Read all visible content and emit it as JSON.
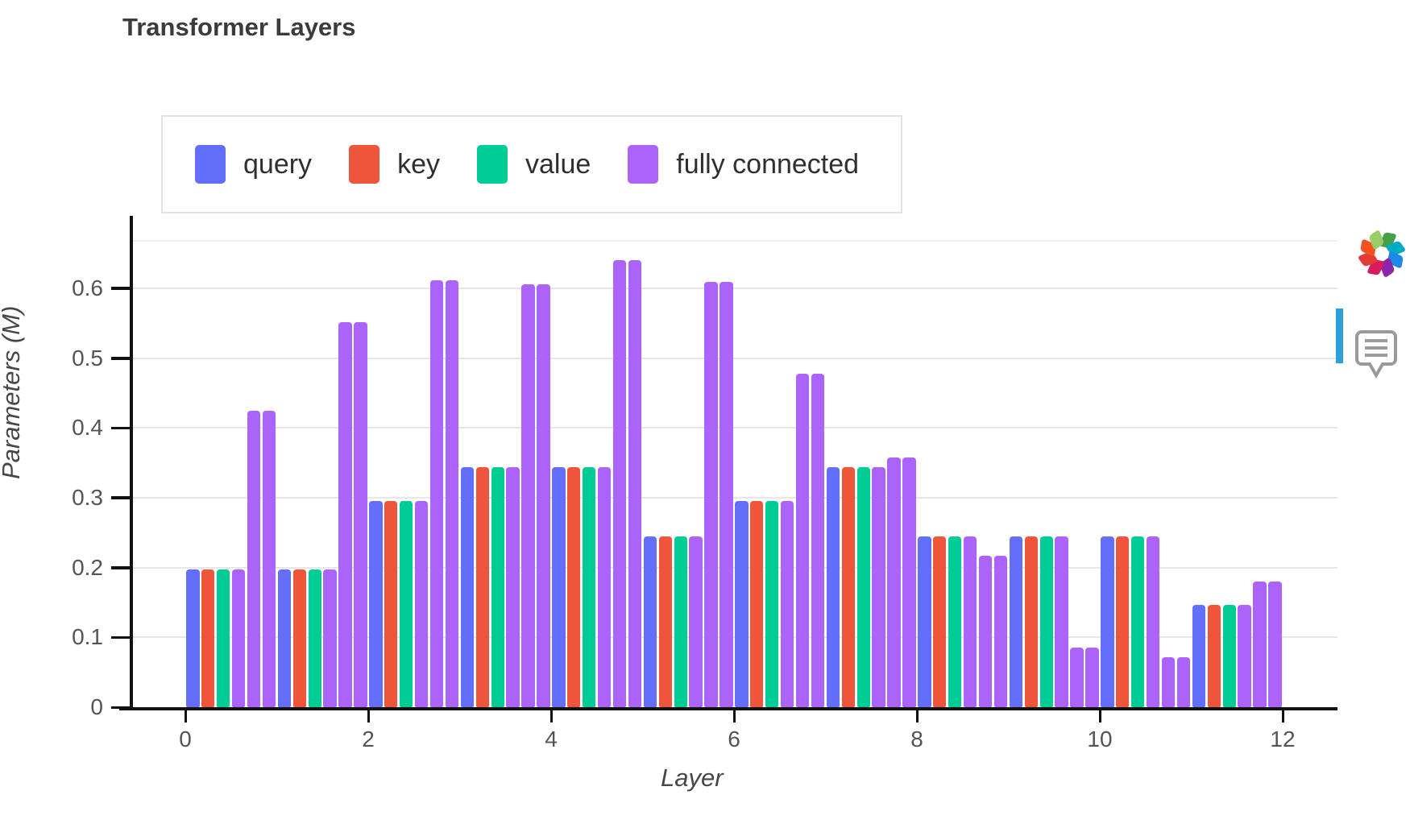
{
  "title": "Transformer Layers",
  "legend": {
    "items": [
      {
        "label": "query",
        "color": "#636EFA"
      },
      {
        "label": "key",
        "color": "#EF553B"
      },
      {
        "label": "value",
        "color": "#00CC96"
      },
      {
        "label": "fully connected",
        "color": "#AB63FA"
      }
    ]
  },
  "axes": {
    "y": {
      "title": "Parameters (M)",
      "tick_labels": [
        "0",
        "0.1",
        "0.2",
        "0.3",
        "0.4",
        "0.5",
        "0.6"
      ]
    },
    "x": {
      "title": "Layer",
      "tick_labels": [
        "0",
        "2",
        "4",
        "6",
        "8",
        "10",
        "12"
      ]
    }
  },
  "sidebar_icons": {
    "pinwheel_colors": [
      "#43A047",
      "#00ACC1",
      "#1E88E5",
      "#8E24AA",
      "#D81B60",
      "#E53935",
      "#F4511E",
      "#9CCC65"
    ],
    "indicator_color": "#29a0d8",
    "bubble_color": "#9a9a9a"
  },
  "chart_data": {
    "type": "bar",
    "title": "Transformer Layers",
    "xlabel": "Layer",
    "ylabel": "Parameters (M)",
    "xlim": [
      0,
      12
    ],
    "ylim": [
      0,
      0.669
    ],
    "x_ticks": [
      0,
      2,
      4,
      6,
      8,
      10,
      12
    ],
    "y_ticks": [
      0,
      0.1,
      0.2,
      0.3,
      0.4,
      0.5,
      0.6
    ],
    "grid": "horizontal",
    "legend_position": "top-left",
    "bar_order_per_group": [
      "query",
      "key",
      "value",
      "fully_connected_1",
      "fully_connected_2",
      "fully_connected_3"
    ],
    "series_colors": {
      "query": "#636EFA",
      "key": "#EF553B",
      "value": "#00CC96",
      "fully_connected": "#AB63FA"
    },
    "layers": [
      {
        "layer": 0,
        "query": 0.197,
        "key": 0.197,
        "value": 0.197,
        "fully_connected": [
          0.197,
          0.425,
          0.425
        ]
      },
      {
        "layer": 1,
        "query": 0.197,
        "key": 0.197,
        "value": 0.197,
        "fully_connected": [
          0.197,
          0.551,
          0.551
        ]
      },
      {
        "layer": 2,
        "query": 0.295,
        "key": 0.295,
        "value": 0.295,
        "fully_connected": [
          0.295,
          0.611,
          0.611
        ]
      },
      {
        "layer": 3,
        "query": 0.344,
        "key": 0.344,
        "value": 0.344,
        "fully_connected": [
          0.344,
          0.605,
          0.605
        ]
      },
      {
        "layer": 4,
        "query": 0.344,
        "key": 0.344,
        "value": 0.344,
        "fully_connected": [
          0.344,
          0.64,
          0.64
        ]
      },
      {
        "layer": 5,
        "query": 0.245,
        "key": 0.245,
        "value": 0.245,
        "fully_connected": [
          0.245,
          0.609,
          0.609
        ]
      },
      {
        "layer": 6,
        "query": 0.295,
        "key": 0.295,
        "value": 0.295,
        "fully_connected": [
          0.295,
          0.478,
          0.478
        ]
      },
      {
        "layer": 7,
        "query": 0.344,
        "key": 0.344,
        "value": 0.344,
        "fully_connected": [
          0.344,
          0.357,
          0.357
        ]
      },
      {
        "layer": 8,
        "query": 0.245,
        "key": 0.245,
        "value": 0.245,
        "fully_connected": [
          0.245,
          0.217,
          0.217
        ]
      },
      {
        "layer": 9,
        "query": 0.245,
        "key": 0.245,
        "value": 0.245,
        "fully_connected": [
          0.245,
          0.085,
          0.085
        ]
      },
      {
        "layer": 10,
        "query": 0.245,
        "key": 0.245,
        "value": 0.245,
        "fully_connected": [
          0.245,
          0.072,
          0.072
        ]
      },
      {
        "layer": 11,
        "query": 0.147,
        "key": 0.147,
        "value": 0.147,
        "fully_connected": [
          0.147,
          0.18,
          0.18
        ]
      }
    ]
  }
}
